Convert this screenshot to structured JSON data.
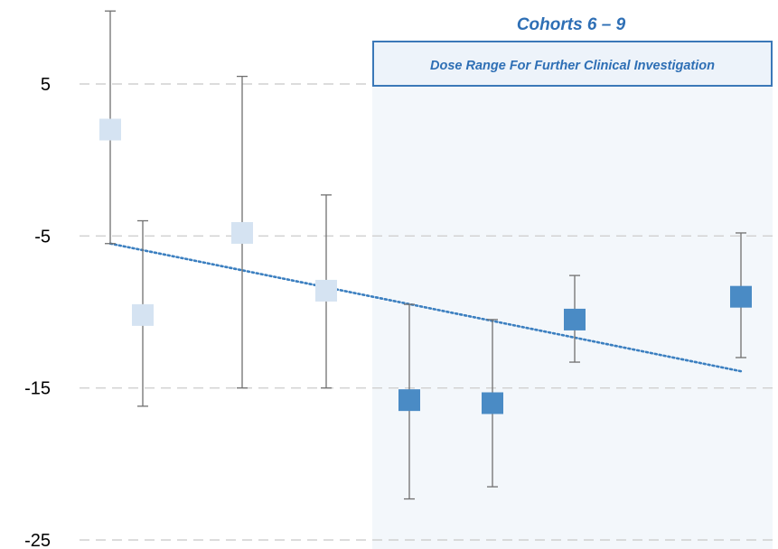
{
  "chart_data": {
    "type": "scatter",
    "title": "",
    "xlabel": "",
    "ylabel": "",
    "ylim": [
      -25,
      10
    ],
    "yticks": [
      5,
      -5,
      -15,
      -25
    ],
    "grid": true,
    "highlight": {
      "title": "Cohorts 6 – 9",
      "label": "Dose Range For Further Clinical Investigation",
      "fill": "#f3f7fb",
      "border": "#3b78b8",
      "label_fill": "#edf3fa"
    },
    "points": [
      {
        "x": 1,
        "y": 2.0,
        "low": -5.5,
        "high": 9.8,
        "group": "light"
      },
      {
        "x": 2,
        "y": -10.2,
        "low": -16.2,
        "high": -4.0,
        "group": "light"
      },
      {
        "x": 3,
        "y": -4.8,
        "low": -15.0,
        "high": 5.5,
        "group": "light"
      },
      {
        "x": 4,
        "y": -8.6,
        "low": -15.0,
        "high": -2.3,
        "group": "light"
      },
      {
        "x": 5,
        "y": -15.8,
        "low": -22.3,
        "high": -9.5,
        "group": "dark"
      },
      {
        "x": 6,
        "y": -16.0,
        "low": -21.5,
        "high": -10.5,
        "group": "dark"
      },
      {
        "x": 7,
        "y": -10.5,
        "low": -13.3,
        "high": -7.6,
        "group": "dark"
      },
      {
        "x": 8,
        "y": -9.0,
        "low": -13.0,
        "high": -4.8,
        "group": "dark"
      }
    ],
    "trendline": {
      "x_start": 1,
      "y_start": -5.5,
      "x_end": 8,
      "y_end": -13.9,
      "color": "#3b7fc0",
      "style": "dotted"
    },
    "colors": {
      "light": "#d5e3f2",
      "dark": "#4a8bc5",
      "error_bar": "#707070",
      "grid": "#d0d0d0"
    }
  }
}
